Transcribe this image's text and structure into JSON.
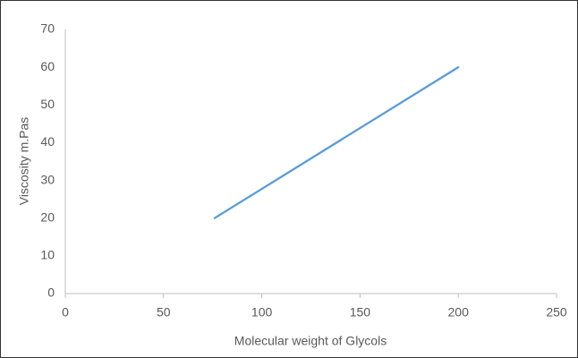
{
  "chart_data": {
    "type": "line",
    "x_label": "Molecular weight of Glycols",
    "y_label": "Viscosity m.Pas",
    "series": [
      {
        "color": "#5b9bd5",
        "x": [
          76,
          200
        ],
        "values": [
          20,
          60
        ]
      }
    ],
    "xlim": [
      0,
      250
    ],
    "xticks": [
      0,
      50,
      100,
      150,
      200,
      250
    ],
    "ylim": [
      0,
      70
    ],
    "yticks": [
      0,
      10,
      20,
      30,
      40,
      50,
      60,
      70
    ],
    "grid": false
  }
}
